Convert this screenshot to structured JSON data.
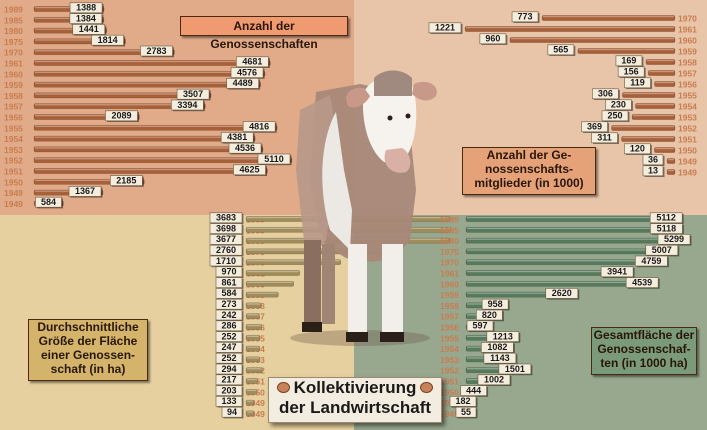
{
  "title": {
    "line1": "Kollektivierung",
    "line2": "der Landwirtschaft"
  },
  "colors": {
    "q1_bg": "#e1aa88",
    "q2_bg": "#e8c4a8",
    "q3_bg": "#e6d0a0",
    "q4_bg": "#98a88f",
    "bar_brown": "#a86038",
    "bar_tan": "#a08c5a",
    "bar_green": "#577a5c",
    "year_color": "#c87d50",
    "label_bg": "#f4ecdc"
  },
  "icons": {
    "cow": "cow-illustration",
    "coin": "coin-icon"
  },
  "chart_data": [
    {
      "type": "bar",
      "title": "Anzahl der Genossenschaften",
      "categories": [
        "1989",
        "1985",
        "1980",
        "1975",
        "1970",
        "1961",
        "1960",
        "1959",
        "1958",
        "1957",
        "1956",
        "1955",
        "1954",
        "1953",
        "1952",
        "1951",
        "1950",
        "1949",
        "1949"
      ],
      "values": [
        1388,
        1384,
        1441,
        1814,
        2783,
        4681,
        4576,
        4489,
        3507,
        3394,
        2089,
        4816,
        4381,
        4536,
        5110,
        4625,
        2185,
        1367,
        584
      ]
    },
    {
      "type": "bar",
      "title": "Anzahl der Genossenschaftsmitglieder (in 1000)",
      "categories": [
        "1970",
        "1961",
        "1960",
        "1959",
        "1958",
        "1957",
        "1956",
        "1955",
        "1954",
        "1953",
        "1952",
        "1951",
        "1950",
        "1949",
        "1949"
      ],
      "values": [
        773,
        1221,
        960,
        565,
        169,
        156,
        119,
        306,
        230,
        250,
        369,
        311,
        120,
        36,
        13
      ]
    },
    {
      "type": "bar",
      "title": "Durchschnittliche Größe der Fläche einer Genossenschaft (in ha)",
      "categories": [
        "1989",
        "1985",
        "1980",
        "1975",
        "1970",
        "1961",
        "1960",
        "1959",
        "1958",
        "1957",
        "1956",
        "1955",
        "1954",
        "1953",
        "1952",
        "1951",
        "1950",
        "1949",
        "1949"
      ],
      "values": [
        3683,
        3698,
        3677,
        2760,
        1710,
        970,
        861,
        584,
        273,
        242,
        286,
        252,
        247,
        252,
        294,
        217,
        203,
        133,
        94
      ]
    },
    {
      "type": "bar",
      "title": "Gesamtfläche der Genossenschaften (in 1000 ha)",
      "categories": [
        "1989",
        "1985",
        "1980",
        "1975",
        "1970",
        "1961",
        "1960",
        "1959",
        "1958",
        "1957",
        "1956",
        "1955",
        "1954",
        "1953",
        "1952",
        "1951",
        "1950",
        "1949",
        "1949"
      ],
      "values": [
        5112,
        5118,
        5299,
        5007,
        4759,
        3941,
        4539,
        2620,
        958,
        820,
        597,
        1213,
        1082,
        1143,
        1501,
        1002,
        444,
        182,
        55
      ]
    }
  ],
  "boxes": {
    "q1": "Anzahl der Genossenschaften",
    "q2": [
      "Anzahl der Ge-",
      "nossenschafts-",
      "mitglieder (in 1000)"
    ],
    "q3": [
      "Durchschnittliche",
      "Größe der Fläche",
      "einer Genossen-",
      "schaft (in ha)"
    ],
    "q4": [
      "Gesamtfläche der",
      "Genossenschaf-",
      "ten (in 1000 ha)"
    ]
  }
}
